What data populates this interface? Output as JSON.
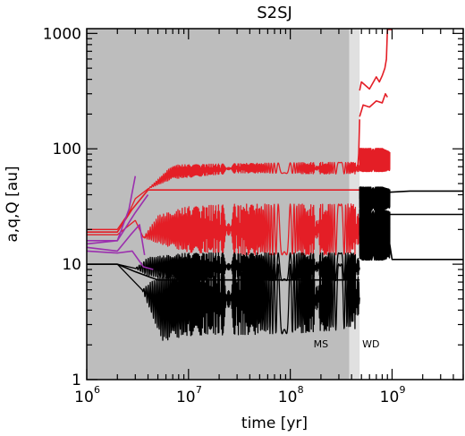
{
  "chart_data": {
    "type": "line",
    "title": "S2SJ",
    "xlabel": "time [yr]",
    "ylabel": "a,q,Q [au]",
    "xscale": "log",
    "yscale": "log",
    "xlim": [
      1000000,
      5000000000
    ],
    "ylim": [
      1,
      1100
    ],
    "x_ticks": [
      {
        "base": "10",
        "exp": "6",
        "value": 1000000
      },
      {
        "base": "10",
        "exp": "7",
        "value": 10000000
      },
      {
        "base": "10",
        "exp": "8",
        "value": 100000000
      },
      {
        "base": "10",
        "exp": "9",
        "value": 1000000000
      }
    ],
    "y_ticks": [
      {
        "label": "1",
        "value": 1
      },
      {
        "label": "10",
        "value": 10
      },
      {
        "label": "100",
        "value": 100
      },
      {
        "label": "1000",
        "value": 1000
      }
    ],
    "phases": [
      {
        "label": "MS",
        "x_range": [
          1000000,
          380000000
        ],
        "color": "#bdbdbd",
        "label_x": 200000000,
        "label_y": 1.9
      },
      {
        "label": "WD",
        "x_range": [
          380000000,
          480000000
        ],
        "color": "#e0e0e0",
        "label_x": 620000000,
        "label_y": 1.9
      }
    ],
    "series": [
      {
        "color": "#e41e26",
        "oscillating": true,
        "x": [
          1000000,
          2000000,
          2600000,
          3000000,
          4000000,
          7000000,
          30000000,
          200000000,
          480000000
        ],
        "y": [
          20,
          20,
          28,
          37,
          45,
          63,
          68,
          68,
          68
        ],
        "amp": [
          0,
          0,
          0,
          0,
          0,
          0.06,
          0.04,
          0.05,
          0.05
        ]
      },
      {
        "color": "#e41e26",
        "oscillating": false,
        "x": [
          1000000,
          2000000,
          2800000,
          4000000,
          30000000,
          480000000
        ],
        "y": [
          19,
          19,
          30,
          44,
          44,
          44
        ],
        "amp": [
          0,
          0,
          0,
          0,
          0,
          0
        ]
      },
      {
        "color": "#e41e26",
        "oscillating": true,
        "x": [
          1000000,
          2000000,
          3000000,
          3600000,
          5000000,
          10000000,
          30000000,
          100000000,
          480000000
        ],
        "y": [
          18,
          18,
          24,
          17,
          20,
          20,
          20,
          20,
          20
        ],
        "amp": [
          0,
          0,
          0,
          0,
          0.12,
          0.2,
          0.22,
          0.22,
          0.22
        ]
      },
      {
        "color": "#000000",
        "oscillating": true,
        "x": [
          1000000,
          2000000,
          3000000,
          4000000,
          10000000,
          100000000,
          480000000
        ],
        "y": [
          10,
          10,
          9.2,
          9.5,
          9.5,
          9.5,
          9.5
        ],
        "amp": [
          0,
          0,
          0,
          0.08,
          0.12,
          0.12,
          0.12
        ]
      },
      {
        "color": "#000000",
        "oscillating": false,
        "x": [
          1000000,
          2000000,
          3000000,
          5000000,
          30000000,
          480000000
        ],
        "y": [
          10,
          10,
          8.6,
          7.3,
          7.3,
          7.3
        ],
        "amp": [
          0,
          0,
          0,
          0,
          0,
          0
        ]
      },
      {
        "color": "#000000",
        "oscillating": true,
        "x": [
          1000000,
          2000000,
          3500000,
          5500000,
          10000000,
          100000000,
          480000000
        ],
        "y": [
          10,
          10,
          6,
          4.3,
          5,
          5,
          5.3
        ],
        "amp": [
          0,
          0,
          0,
          0.3,
          0.32,
          0.3,
          0.28
        ]
      },
      {
        "color": "#9b2fae",
        "oscillating": false,
        "x": [
          1000000,
          2000000,
          2600000,
          3000000
        ],
        "y": [
          16,
          16,
          30,
          58
        ],
        "amp": [
          0,
          0,
          0,
          0
        ]
      },
      {
        "color": "#9b2fae",
        "oscillating": false,
        "x": [
          1000000,
          2000000,
          3000000,
          4000000
        ],
        "y": [
          15,
          16,
          28,
          40
        ],
        "amp": [
          0,
          0,
          0,
          0
        ]
      },
      {
        "color": "#9b2fae",
        "oscillating": false,
        "x": [
          1000000,
          2000000,
          2700000,
          3300000,
          3700000
        ],
        "y": [
          14,
          13,
          18,
          22,
          12
        ],
        "amp": [
          0,
          0,
          0,
          0,
          0
        ]
      },
      {
        "color": "#9b2fae",
        "oscillating": false,
        "x": [
          1000000,
          2000000,
          2800000,
          3600000,
          4500000
        ],
        "y": [
          13,
          12.5,
          13,
          9.5,
          9
        ],
        "amp": [
          0,
          0,
          0,
          0,
          0
        ]
      },
      {
        "color": "#e41e26",
        "oscillating": false,
        "x": [
          480000000,
          500000000,
          600000000,
          700000000,
          750000000,
          800000000,
          850000000,
          880000000,
          900000000,
          1000000000
        ],
        "y": [
          320,
          380,
          330,
          420,
          380,
          430,
          500,
          600,
          1100,
          1100
        ],
        "amp": [
          0,
          0,
          0,
          0,
          0,
          0,
          0,
          0,
          0,
          0
        ]
      },
      {
        "color": "#e41e26",
        "oscillating": false,
        "x": [
          480000000,
          520000000,
          600000000,
          700000000,
          800000000,
          860000000,
          900000000
        ],
        "y": [
          190,
          240,
          230,
          260,
          250,
          300,
          280
        ],
        "amp": [
          0,
          0,
          0,
          0,
          0,
          0,
          0
        ]
      },
      {
        "color": "#e41e26",
        "oscillating": true,
        "x": [
          480000000,
          600000000,
          800000000,
          950000000
        ],
        "y": [
          80,
          80,
          80,
          78
        ],
        "amp": [
          0.1,
          0.1,
          0.1,
          0.08
        ]
      },
      {
        "color": "#000000",
        "oscillating": true,
        "x": [
          480000000,
          600000000,
          800000000,
          950000000
        ],
        "y": [
          37,
          37,
          37,
          37
        ],
        "amp": [
          0.1,
          0.1,
          0.1,
          0.08
        ]
      },
      {
        "color": "#000000",
        "oscillating": true,
        "x": [
          480000000,
          600000000,
          800000000,
          950000000
        ],
        "y": [
          18,
          18,
          18,
          18
        ],
        "amp": [
          0.22,
          0.22,
          0.22,
          0.2
        ]
      },
      {
        "color": "#000000",
        "oscillating": false,
        "x": [
          900000000,
          1500000000,
          5000000000
        ],
        "y": [
          42,
          43,
          43
        ],
        "amp": [
          0,
          0,
          0
        ]
      },
      {
        "color": "#000000",
        "oscillating": false,
        "x": [
          480000000,
          800000000,
          1500000000,
          5000000000
        ],
        "y": [
          27,
          27,
          27,
          27
        ],
        "amp": [
          0,
          0,
          0,
          0
        ]
      },
      {
        "color": "#000000",
        "oscillating": false,
        "x": [
          900000000,
          1000000000,
          1500000000,
          5000000000
        ],
        "y": [
          20,
          11,
          11,
          11
        ],
        "amp": [
          0,
          0,
          0,
          0
        ]
      },
      {
        "color": "#e41e26",
        "oscillating": false,
        "x": [
          460000000,
          470000000,
          480000000
        ],
        "y": [
          70,
          90,
          180
        ],
        "amp": [
          0,
          0,
          0
        ]
      }
    ]
  }
}
